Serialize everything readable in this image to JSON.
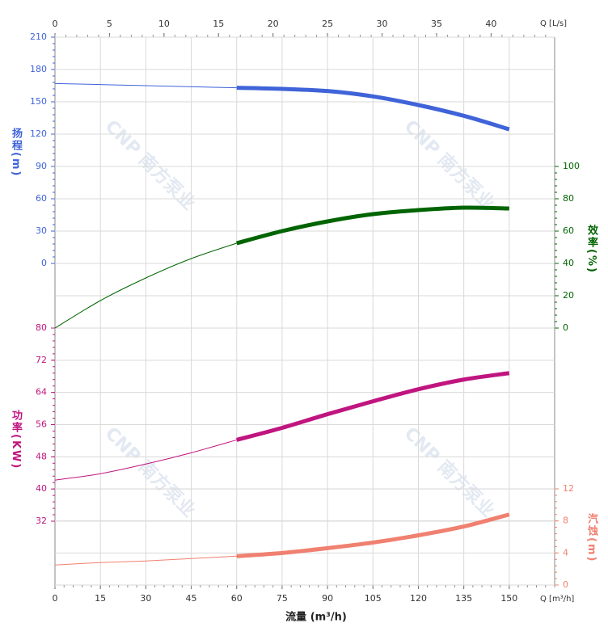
{
  "chart_data": {
    "type": "line",
    "watermark": "CNP 南方泵业",
    "x_label": "流量 (m³/h)",
    "x_unit_label": "Q [m³/h]",
    "x2_unit_label": "Q [L/s]",
    "x": [
      0,
      15,
      30,
      45,
      60,
      75,
      90,
      105,
      120,
      135,
      150
    ],
    "xlim": [
      0,
      165
    ],
    "xticks": [
      0,
      15,
      30,
      45,
      60,
      75,
      90,
      105,
      120,
      135,
      150
    ],
    "x2lim": [
      0,
      45.83
    ],
    "x2ticks": [
      0,
      5,
      10,
      15,
      20,
      25,
      30,
      35,
      40
    ],
    "grid": true,
    "highlight_range": [
      60,
      150
    ],
    "series": [
      {
        "name": "扬程(m)",
        "color": "#3f63d8",
        "side": "left",
        "ylim": [
          0,
          210
        ],
        "yticks": [
          0,
          30,
          60,
          90,
          120,
          150,
          180,
          210
        ],
        "values": [
          167,
          166,
          165,
          164,
          163,
          162,
          160,
          155,
          147,
          137,
          124.5
        ]
      },
      {
        "name": "效率(%)",
        "color": "#006400",
        "side": "right",
        "ylim": [
          0,
          100
        ],
        "yticks": [
          0,
          20,
          40,
          60,
          80,
          100
        ],
        "values": [
          0,
          17,
          31,
          43,
          52.5,
          60,
          66,
          70.5,
          73,
          74.5,
          74
        ]
      },
      {
        "name": "功率(KW)",
        "color": "#c0157f",
        "side": "left",
        "ylim": [
          32,
          80
        ],
        "yticks": [
          32,
          40,
          48,
          56,
          64,
          72,
          80
        ],
        "values": [
          42.2,
          43.8,
          46.2,
          49,
          52.2,
          55.2,
          58.6,
          61.8,
          64.8,
          67.2,
          68.8
        ]
      },
      {
        "name": "汽蚀(m)",
        "color": "#f08070",
        "side": "right",
        "ylim": [
          0,
          12
        ],
        "yticks": [
          0,
          4,
          8,
          12
        ],
        "values": [
          2.5,
          2.8,
          3.0,
          3.3,
          3.6,
          4.0,
          4.6,
          5.3,
          6.2,
          7.3,
          8.8
        ]
      }
    ]
  }
}
